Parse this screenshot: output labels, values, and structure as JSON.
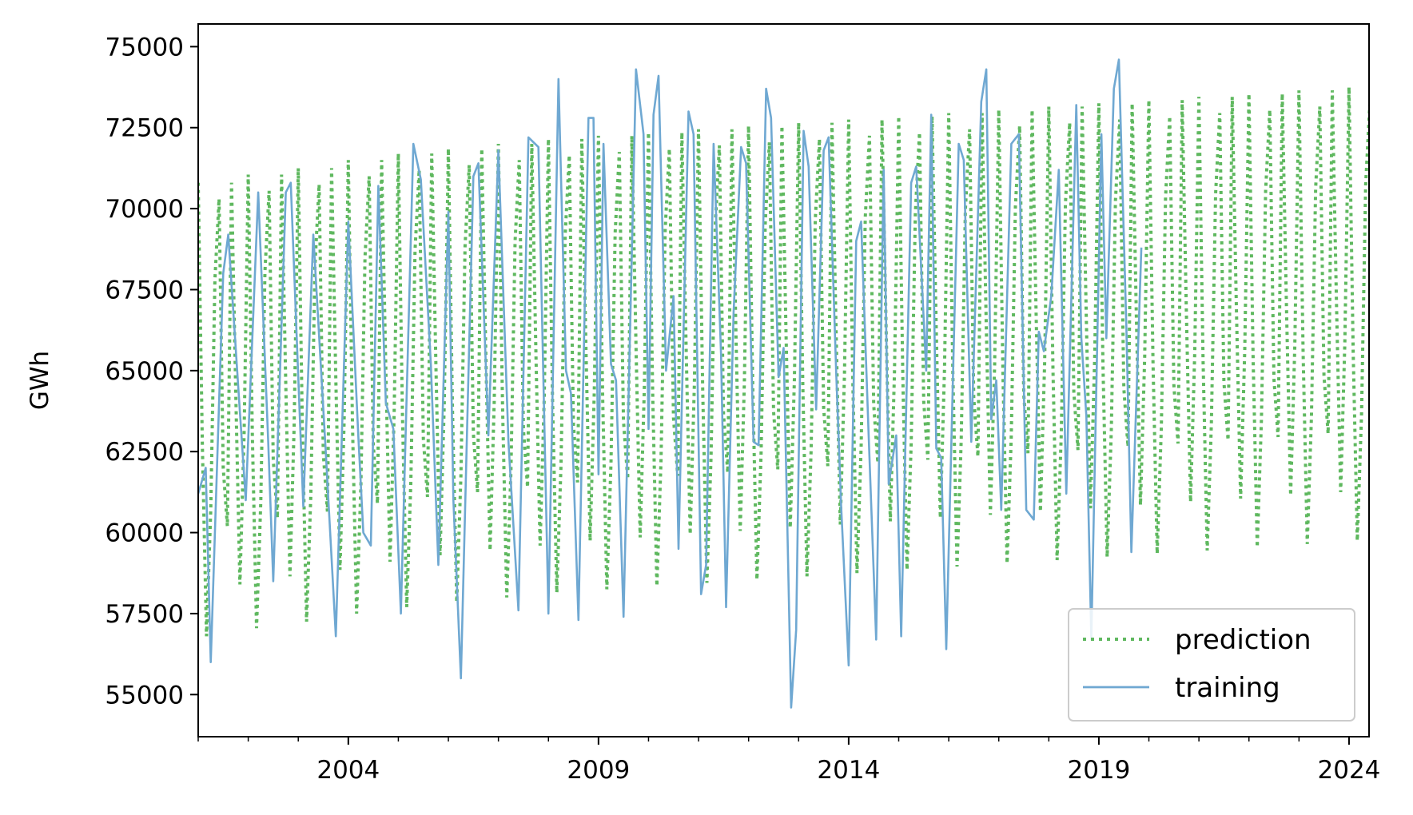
{
  "chart_data": {
    "type": "line",
    "title": "",
    "xlabel": "",
    "ylabel": "GWh",
    "xlim": [
      2001.0,
      2024.4
    ],
    "ylim": [
      53700,
      75700
    ],
    "grid": false,
    "legend_position": "bottom-right",
    "x_tick_labels": [
      "2004",
      "2009",
      "2014",
      "2019",
      "2024"
    ],
    "x_ticks": [
      2004,
      2009,
      2014,
      2019,
      2024
    ],
    "y_tick_labels": [
      "55000",
      "57500",
      "60000",
      "62500",
      "65000",
      "67500",
      "70000",
      "72500",
      "75000"
    ],
    "y_ticks": [
      55000,
      57500,
      60000,
      62500,
      65000,
      67500,
      70000,
      72500,
      75000
    ],
    "series": [
      {
        "name": "prediction",
        "style": "dotted",
        "color": "#5fb85f",
        "x_start": 2001.0,
        "step_years": 0.08333,
        "seasonal_pattern": [
          70800,
          62700,
          56800,
          60700,
          67800,
          70300,
          62000,
          60200,
          70800,
          64300,
          58400,
          63000
        ],
        "annual_trend": [
          0,
          250,
          450,
          700,
          900,
          1050,
          1200,
          1350,
          1450,
          1550,
          1650,
          1750,
          1850,
          1950,
          2050,
          2150,
          2250,
          2350,
          2450,
          2550,
          2650,
          2750,
          2850,
          2950
        ]
      },
      {
        "name": "training",
        "style": "solid",
        "color": "#6fa8d2",
        "x_start": 2001.0,
        "x_end": 2019.85,
        "key_points": [
          [
            2001.0,
            61200
          ],
          [
            2001.15,
            62000
          ],
          [
            2001.25,
            56000
          ],
          [
            2001.5,
            68000
          ],
          [
            2001.6,
            69200
          ],
          [
            2001.8,
            64500
          ],
          [
            2001.95,
            61000
          ],
          [
            2002.2,
            70500
          ],
          [
            2002.4,
            62800
          ],
          [
            2002.5,
            58500
          ],
          [
            2002.75,
            70500
          ],
          [
            2002.85,
            70800
          ],
          [
            2003.0,
            64800
          ],
          [
            2003.1,
            60800
          ],
          [
            2003.3,
            69200
          ],
          [
            2003.55,
            62500
          ],
          [
            2003.75,
            56800
          ],
          [
            2004.0,
            69600
          ],
          [
            2004.2,
            63000
          ],
          [
            2004.3,
            60000
          ],
          [
            2004.45,
            59600
          ],
          [
            2004.6,
            70700
          ],
          [
            2004.75,
            64000
          ],
          [
            2004.9,
            63200
          ],
          [
            2005.05,
            57500
          ],
          [
            2005.3,
            72000
          ],
          [
            2005.45,
            70900
          ],
          [
            2005.65,
            65200
          ],
          [
            2005.8,
            59000
          ],
          [
            2006.0,
            69900
          ],
          [
            2006.1,
            61000
          ],
          [
            2006.25,
            55500
          ],
          [
            2006.5,
            71000
          ],
          [
            2006.6,
            71400
          ],
          [
            2006.8,
            63000
          ],
          [
            2007.0,
            71800
          ],
          [
            2007.2,
            62800
          ],
          [
            2007.4,
            57600
          ],
          [
            2007.6,
            72200
          ],
          [
            2007.8,
            71900
          ],
          [
            2008.0,
            57500
          ],
          [
            2008.2,
            74000
          ],
          [
            2008.35,
            65000
          ],
          [
            2008.45,
            64300
          ],
          [
            2008.6,
            57300
          ],
          [
            2008.8,
            72800
          ],
          [
            2008.9,
            72800
          ],
          [
            2009.0,
            61800
          ],
          [
            2009.1,
            72000
          ],
          [
            2009.25,
            65200
          ],
          [
            2009.35,
            64700
          ],
          [
            2009.5,
            57400
          ],
          [
            2009.75,
            74300
          ],
          [
            2009.9,
            72300
          ],
          [
            2010.0,
            63200
          ],
          [
            2010.1,
            72900
          ],
          [
            2010.2,
            74100
          ],
          [
            2010.35,
            65000
          ],
          [
            2010.5,
            67300
          ],
          [
            2010.6,
            59500
          ],
          [
            2010.8,
            73000
          ],
          [
            2010.9,
            72300
          ],
          [
            2011.05,
            58100
          ],
          [
            2011.15,
            59000
          ],
          [
            2011.3,
            72000
          ],
          [
            2011.45,
            65500
          ],
          [
            2011.55,
            57700
          ],
          [
            2011.7,
            66800
          ],
          [
            2011.85,
            71900
          ],
          [
            2011.95,
            71400
          ],
          [
            2012.1,
            62800
          ],
          [
            2012.2,
            62700
          ],
          [
            2012.35,
            73700
          ],
          [
            2012.45,
            72800
          ],
          [
            2012.6,
            64800
          ],
          [
            2012.7,
            65700
          ],
          [
            2012.85,
            54600
          ],
          [
            2012.95,
            57000
          ],
          [
            2013.1,
            72400
          ],
          [
            2013.2,
            71300
          ],
          [
            2013.35,
            63800
          ],
          [
            2013.5,
            71800
          ],
          [
            2013.6,
            72200
          ],
          [
            2013.75,
            65000
          ],
          [
            2013.85,
            60800
          ],
          [
            2014.0,
            55900
          ],
          [
            2014.15,
            69000
          ],
          [
            2014.25,
            69600
          ],
          [
            2014.4,
            63000
          ],
          [
            2014.55,
            56700
          ],
          [
            2014.7,
            71200
          ],
          [
            2014.8,
            61500
          ],
          [
            2014.95,
            63000
          ],
          [
            2015.05,
            56800
          ],
          [
            2015.25,
            70800
          ],
          [
            2015.35,
            71300
          ],
          [
            2015.55,
            65000
          ],
          [
            2015.65,
            72900
          ],
          [
            2015.75,
            62600
          ],
          [
            2015.85,
            62300
          ],
          [
            2015.95,
            56400
          ],
          [
            2016.2,
            72000
          ],
          [
            2016.3,
            71500
          ],
          [
            2016.45,
            62800
          ],
          [
            2016.65,
            73300
          ],
          [
            2016.75,
            74300
          ],
          [
            2016.85,
            63500
          ],
          [
            2016.95,
            64700
          ],
          [
            2017.05,
            60700
          ],
          [
            2017.25,
            72000
          ],
          [
            2017.4,
            72300
          ],
          [
            2017.55,
            60700
          ],
          [
            2017.7,
            60400
          ],
          [
            2017.8,
            66200
          ],
          [
            2017.9,
            65600
          ],
          [
            2018.05,
            67300
          ],
          [
            2018.2,
            71200
          ],
          [
            2018.35,
            61200
          ],
          [
            2018.55,
            73200
          ],
          [
            2018.65,
            66000
          ],
          [
            2018.75,
            63600
          ],
          [
            2018.85,
            56700
          ],
          [
            2019.05,
            72300
          ],
          [
            2019.15,
            66000
          ],
          [
            2019.3,
            73700
          ],
          [
            2019.4,
            74600
          ],
          [
            2019.55,
            66300
          ],
          [
            2019.65,
            59400
          ],
          [
            2019.85,
            68800
          ]
        ]
      }
    ]
  },
  "legend": {
    "items": [
      "prediction",
      "training"
    ]
  }
}
